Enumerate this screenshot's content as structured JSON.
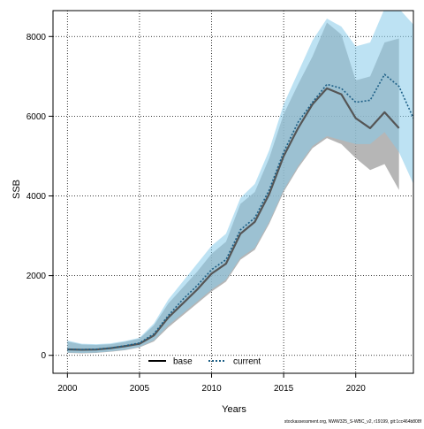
{
  "chart_data": {
    "type": "line",
    "xlabel": "Years",
    "ylabel": "SSB",
    "xlim": [
      1999,
      2024
    ],
    "ylim": [
      -450,
      8650
    ],
    "x_ticks": [
      2000,
      2005,
      2010,
      2015,
      2020
    ],
    "y_ticks": [
      0,
      2000,
      4000,
      6000,
      8000
    ],
    "grid": true,
    "legend_position": "bottom-center",
    "x": [
      2000,
      2001,
      2002,
      2003,
      2004,
      2005,
      2006,
      2007,
      2008,
      2009,
      2010,
      2011,
      2012,
      2013,
      2014,
      2015,
      2016,
      2017,
      2018,
      2019,
      2020,
      2021,
      2022,
      2023
    ],
    "series": [
      {
        "name": "base",
        "line_color": "#555555",
        "line_style": "solid",
        "band_color": "#9e9e9e",
        "values": [
          150,
          140,
          145,
          180,
          230,
          290,
          500,
          950,
          1300,
          1650,
          2050,
          2300,
          3050,
          3350,
          4050,
          5000,
          5700,
          6300,
          6700,
          6550,
          5950,
          5700,
          6100,
          5700
        ],
        "lower": [
          60,
          50,
          60,
          90,
          130,
          200,
          350,
          700,
          1000,
          1300,
          1600,
          1850,
          2400,
          2650,
          3300,
          4100,
          4700,
          5200,
          5450,
          5300,
          4950,
          4650,
          4800,
          4150
        ],
        "upper": [
          350,
          270,
          260,
          280,
          340,
          420,
          750,
          1300,
          1700,
          2100,
          2550,
          2850,
          3800,
          4100,
          4950,
          6050,
          6800,
          7500,
          8350,
          8050,
          6900,
          7000,
          7850,
          7950
        ]
      },
      {
        "name": "current",
        "line_color": "#1d5f86",
        "line_style": "dotted",
        "band_color": "#87cbe9",
        "values": [
          150,
          145,
          155,
          185,
          240,
          310,
          540,
          1000,
          1400,
          1750,
          2150,
          2400,
          3150,
          3450,
          4150,
          5100,
          5850,
          6350,
          6800,
          6700,
          6350,
          6400,
          7050,
          6750,
          5950
        ],
        "x": [
          2000,
          2001,
          2002,
          2003,
          2004,
          2005,
          2006,
          2007,
          2008,
          2009,
          2010,
          2011,
          2012,
          2013,
          2014,
          2015,
          2016,
          2017,
          2018,
          2019,
          2020,
          2021,
          2022,
          2023,
          2024
        ],
        "lower": [
          70,
          60,
          70,
          100,
          140,
          210,
          380,
          750,
          1050,
          1350,
          1650,
          1900,
          2450,
          2700,
          3350,
          4150,
          4750,
          5250,
          5500,
          5400,
          5300,
          5300,
          5600,
          5100,
          4300
        ],
        "upper": [
          370,
          290,
          280,
          300,
          360,
          440,
          800,
          1400,
          1850,
          2300,
          2750,
          3050,
          3950,
          4300,
          5150,
          6300,
          7100,
          7900,
          8450,
          8250,
          7750,
          7850,
          8700,
          8700,
          8300
        ]
      }
    ]
  },
  "footer": {
    "source_note": "stockassessment.org, NWW325_S-WBC_v2, r19199, git:1cc464b808f"
  }
}
